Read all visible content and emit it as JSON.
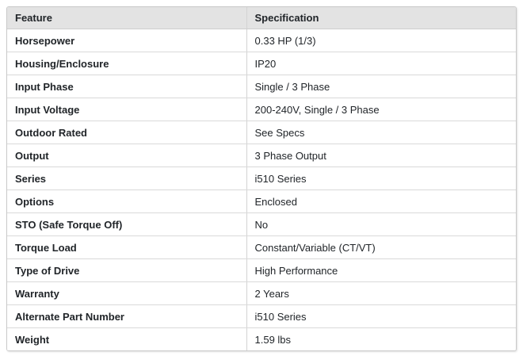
{
  "table": {
    "columns": [
      "Feature",
      "Specification"
    ],
    "rows": [
      {
        "feature": "Horsepower",
        "specification": "0.33 HP (1/3)"
      },
      {
        "feature": "Housing/Enclosure",
        "specification": "IP20"
      },
      {
        "feature": "Input Phase",
        "specification": "Single / 3 Phase"
      },
      {
        "feature": "Input Voltage",
        "specification": "200-240V, Single / 3 Phase"
      },
      {
        "feature": "Outdoor Rated",
        "specification": "See Specs"
      },
      {
        "feature": "Output",
        "specification": "3 Phase Output"
      },
      {
        "feature": "Series",
        "specification": "i510 Series"
      },
      {
        "feature": "Options",
        "specification": "Enclosed"
      },
      {
        "feature": "STO (Safe Torque Off)",
        "specification": "No"
      },
      {
        "feature": "Torque Load",
        "specification": "Constant/Variable (CT/VT)"
      },
      {
        "feature": "Type of Drive",
        "specification": "High Performance"
      },
      {
        "feature": "Warranty",
        "specification": "2 Years"
      },
      {
        "feature": "Alternate Part Number",
        "specification": "i510 Series"
      },
      {
        "feature": "Weight",
        "specification": "1.59 lbs"
      }
    ],
    "colors": {
      "header_background": "#e3e3e3",
      "outer_border": "#c9c9c9",
      "row_border": "#d9d9d9",
      "column_divider": "#d3d3d3",
      "text": "#212529",
      "row_background": "#ffffff"
    }
  }
}
